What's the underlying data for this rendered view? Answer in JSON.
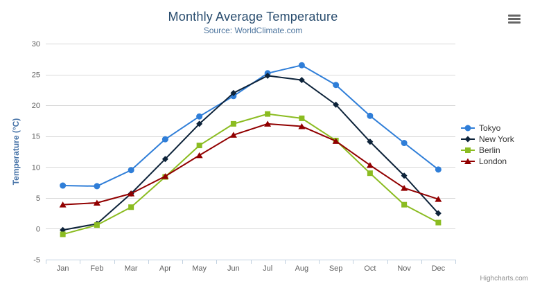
{
  "chart": {
    "credits_label": "Highcharts.com"
  },
  "icons": {
    "export_menu": "hamburger-icon"
  },
  "colors": {
    "title": "#274b6d",
    "subtitle": "#4d759e",
    "axis_title": "#4572a7",
    "axis_labels": "#606060",
    "gridline": "#d8d8d8",
    "axis_line": "#c0d0e0",
    "legend_text": "#333333",
    "credits": "#909090",
    "menu_icon": "#666666"
  },
  "chart_data": {
    "type": "line",
    "title": "Monthly Average Temperature",
    "subtitle": "Source: WorldClimate.com",
    "xlabel": "",
    "ylabel": "Temperature (°C)",
    "categories": [
      "Jan",
      "Feb",
      "Mar",
      "Apr",
      "May",
      "Jun",
      "Jul",
      "Aug",
      "Sep",
      "Oct",
      "Nov",
      "Dec"
    ],
    "ylim": [
      -5,
      30
    ],
    "yticks": [
      -5,
      0,
      5,
      10,
      15,
      20,
      25,
      30
    ],
    "grid": true,
    "legend_position": "right",
    "series": [
      {
        "name": "Tokyo",
        "color": "#2f7ed8",
        "marker": "circle",
        "values": [
          7.0,
          6.9,
          9.5,
          14.5,
          18.2,
          21.5,
          25.2,
          26.5,
          23.3,
          18.3,
          13.9,
          9.6
        ]
      },
      {
        "name": "New York",
        "color": "#0d233a",
        "marker": "diamond",
        "values": [
          -0.2,
          0.8,
          5.7,
          11.3,
          17.0,
          22.0,
          24.8,
          24.1,
          20.1,
          14.1,
          8.6,
          2.5
        ]
      },
      {
        "name": "Berlin",
        "color": "#8bbc21",
        "marker": "square",
        "values": [
          -0.9,
          0.6,
          3.5,
          8.4,
          13.5,
          17.0,
          18.6,
          17.9,
          14.3,
          9.0,
          3.9,
          1.0
        ]
      },
      {
        "name": "London",
        "color": "#910000",
        "marker": "triangle",
        "values": [
          3.9,
          4.2,
          5.7,
          8.5,
          11.9,
          15.2,
          17.0,
          16.6,
          14.2,
          10.3,
          6.6,
          4.8
        ]
      }
    ]
  }
}
